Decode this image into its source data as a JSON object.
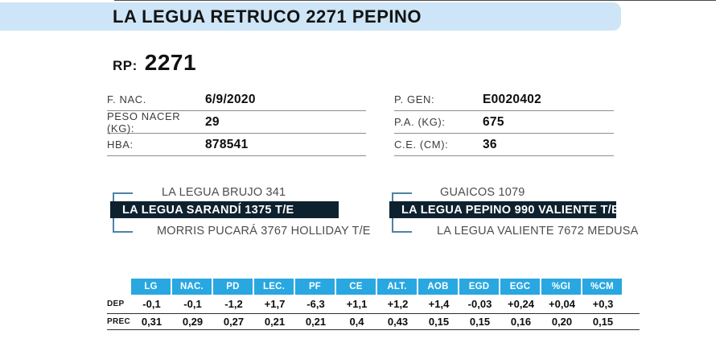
{
  "header": {
    "title": "LA LEGUA RETRUCO 2271 PEPINO"
  },
  "rp": {
    "label": "RP:",
    "value": "2271"
  },
  "info": {
    "left": [
      {
        "label": "F. NAC.",
        "value": "6/9/2020"
      },
      {
        "label": "PESO NACER (KG):",
        "value": "29"
      },
      {
        "label": "HBA:",
        "value": "878541"
      }
    ],
    "right": [
      {
        "label": "P. GEN:",
        "value": "E0020402"
      },
      {
        "label": "P.A. (KG):",
        "value": "675"
      },
      {
        "label": "C.E. (CM):",
        "value": "36"
      }
    ]
  },
  "pedigree": {
    "left": {
      "sire": "LA LEGUA BRUJO 341",
      "animal": "LA LEGUA SARANDÍ 1375 T/E",
      "dam": "MORRIS PUCARÁ 3767 HOLLIDAY T/E"
    },
    "right": {
      "sire": "GUAICOS 1079",
      "animal": "LA LEGUA PEPINO 990 VALIENTE T/E",
      "dam": "LA LEGUA VALIENTE 7672 MEDUSA"
    }
  },
  "dep_table": {
    "columns": [
      "LG",
      "NAC.",
      "PD",
      "LEC.",
      "PF",
      "CE",
      "ALT.",
      "AOB",
      "EGD",
      "EGC",
      "%GI",
      "%CM"
    ],
    "rows": [
      {
        "label": "DEP",
        "values": [
          "-0,1",
          "-0,1",
          "-1,2",
          "+1,7",
          "-6,3",
          "+1,1",
          "+1,2",
          "+1,4",
          "-0,03",
          "+0,24",
          "+0,04",
          "+0,3"
        ]
      },
      {
        "label": "PREC",
        "values": [
          "0,31",
          "0,29",
          "0,27",
          "0,21",
          "0,21",
          "0,4",
          "0,43",
          "0,15",
          "0,15",
          "0,16",
          "0,20",
          "0,15"
        ]
      }
    ]
  },
  "colors": {
    "title_band_blue": "#cde5f6",
    "table_header_blue": "#29a7e0",
    "pedigree_bar_navy": "#0e212e",
    "bracket_blue": "#4d82a8"
  }
}
